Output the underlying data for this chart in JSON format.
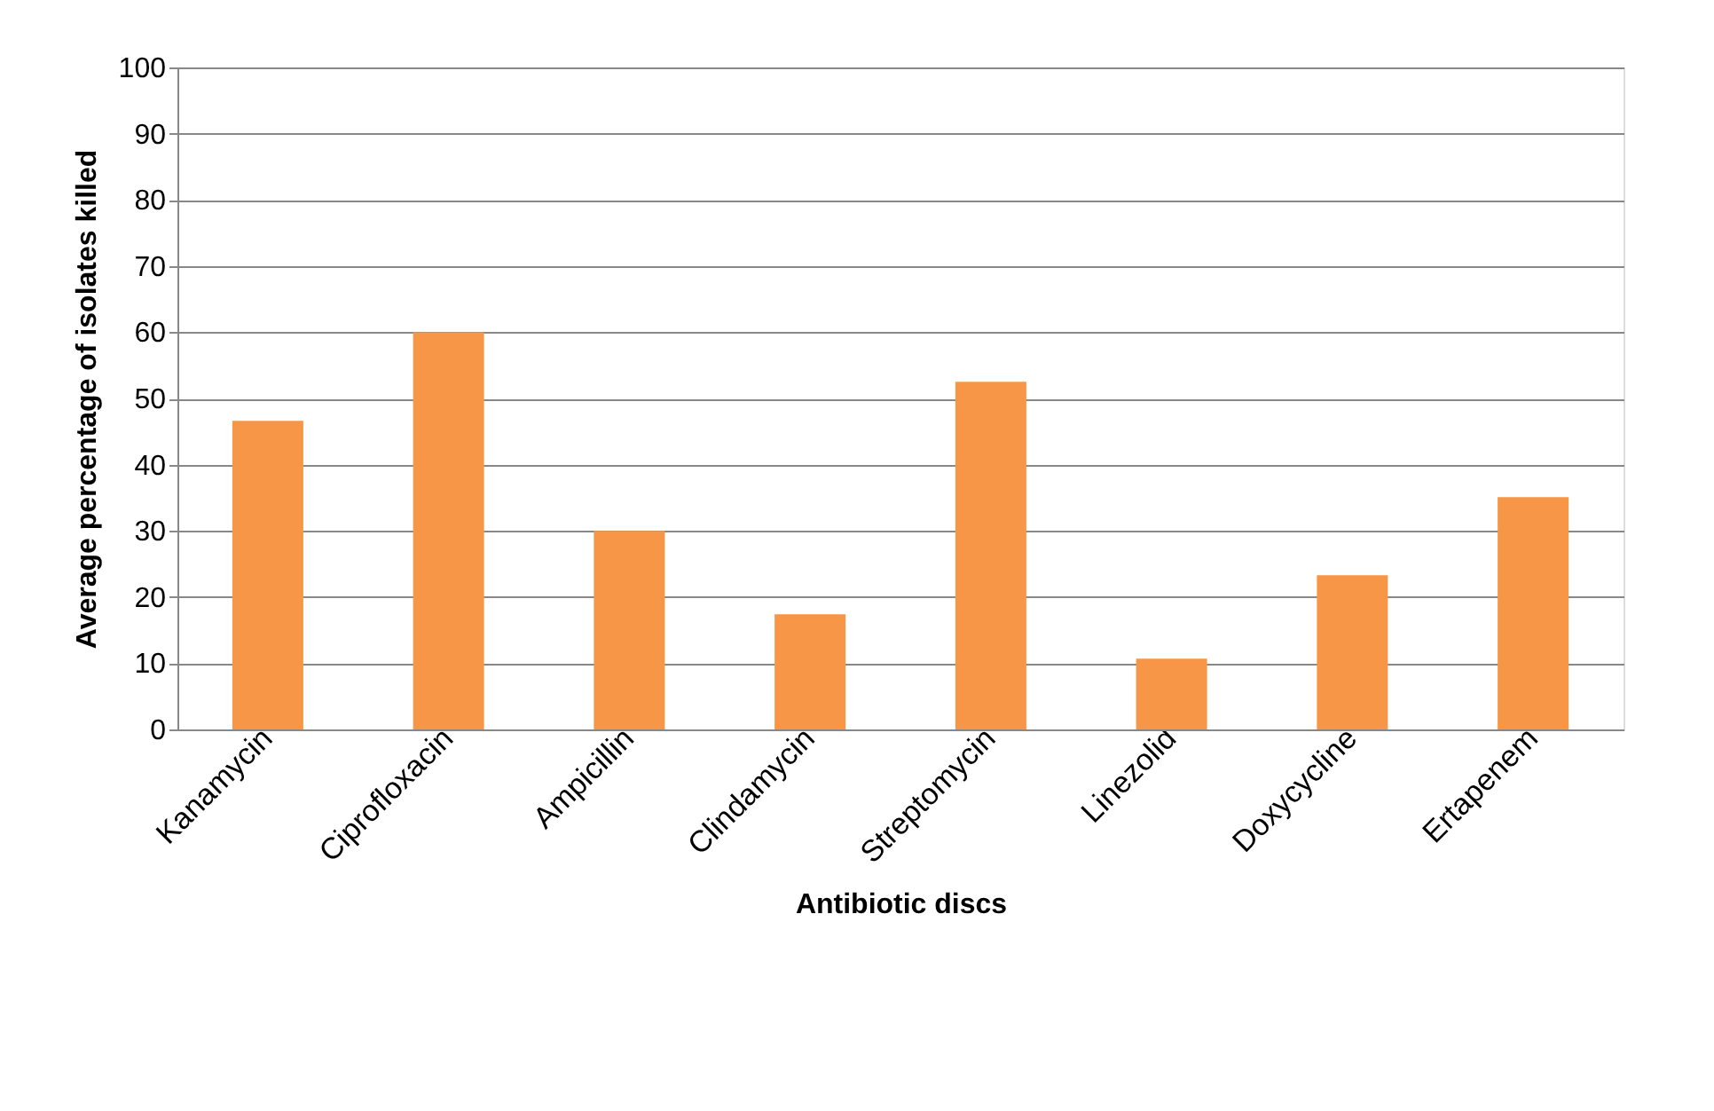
{
  "chart_data": {
    "type": "bar",
    "xlabel": "Antibiotic discs",
    "ylabel": "Average percentage of isolates killed",
    "categories": [
      "Kanamycin",
      "Ciprofloxacin",
      "Ampicillin",
      "Clindamycin",
      "Streptomycin",
      "Linezolid",
      "Doxycycline",
      "Ertapenem"
    ],
    "values": [
      46.6,
      60,
      30,
      17.4,
      52.5,
      10.7,
      23.3,
      35.1
    ],
    "color": "#f79646",
    "ylim": [
      0,
      100
    ],
    "yticks": [
      0,
      10,
      20,
      30,
      40,
      50,
      60,
      70,
      80,
      90,
      100
    ],
    "grid": "y"
  }
}
